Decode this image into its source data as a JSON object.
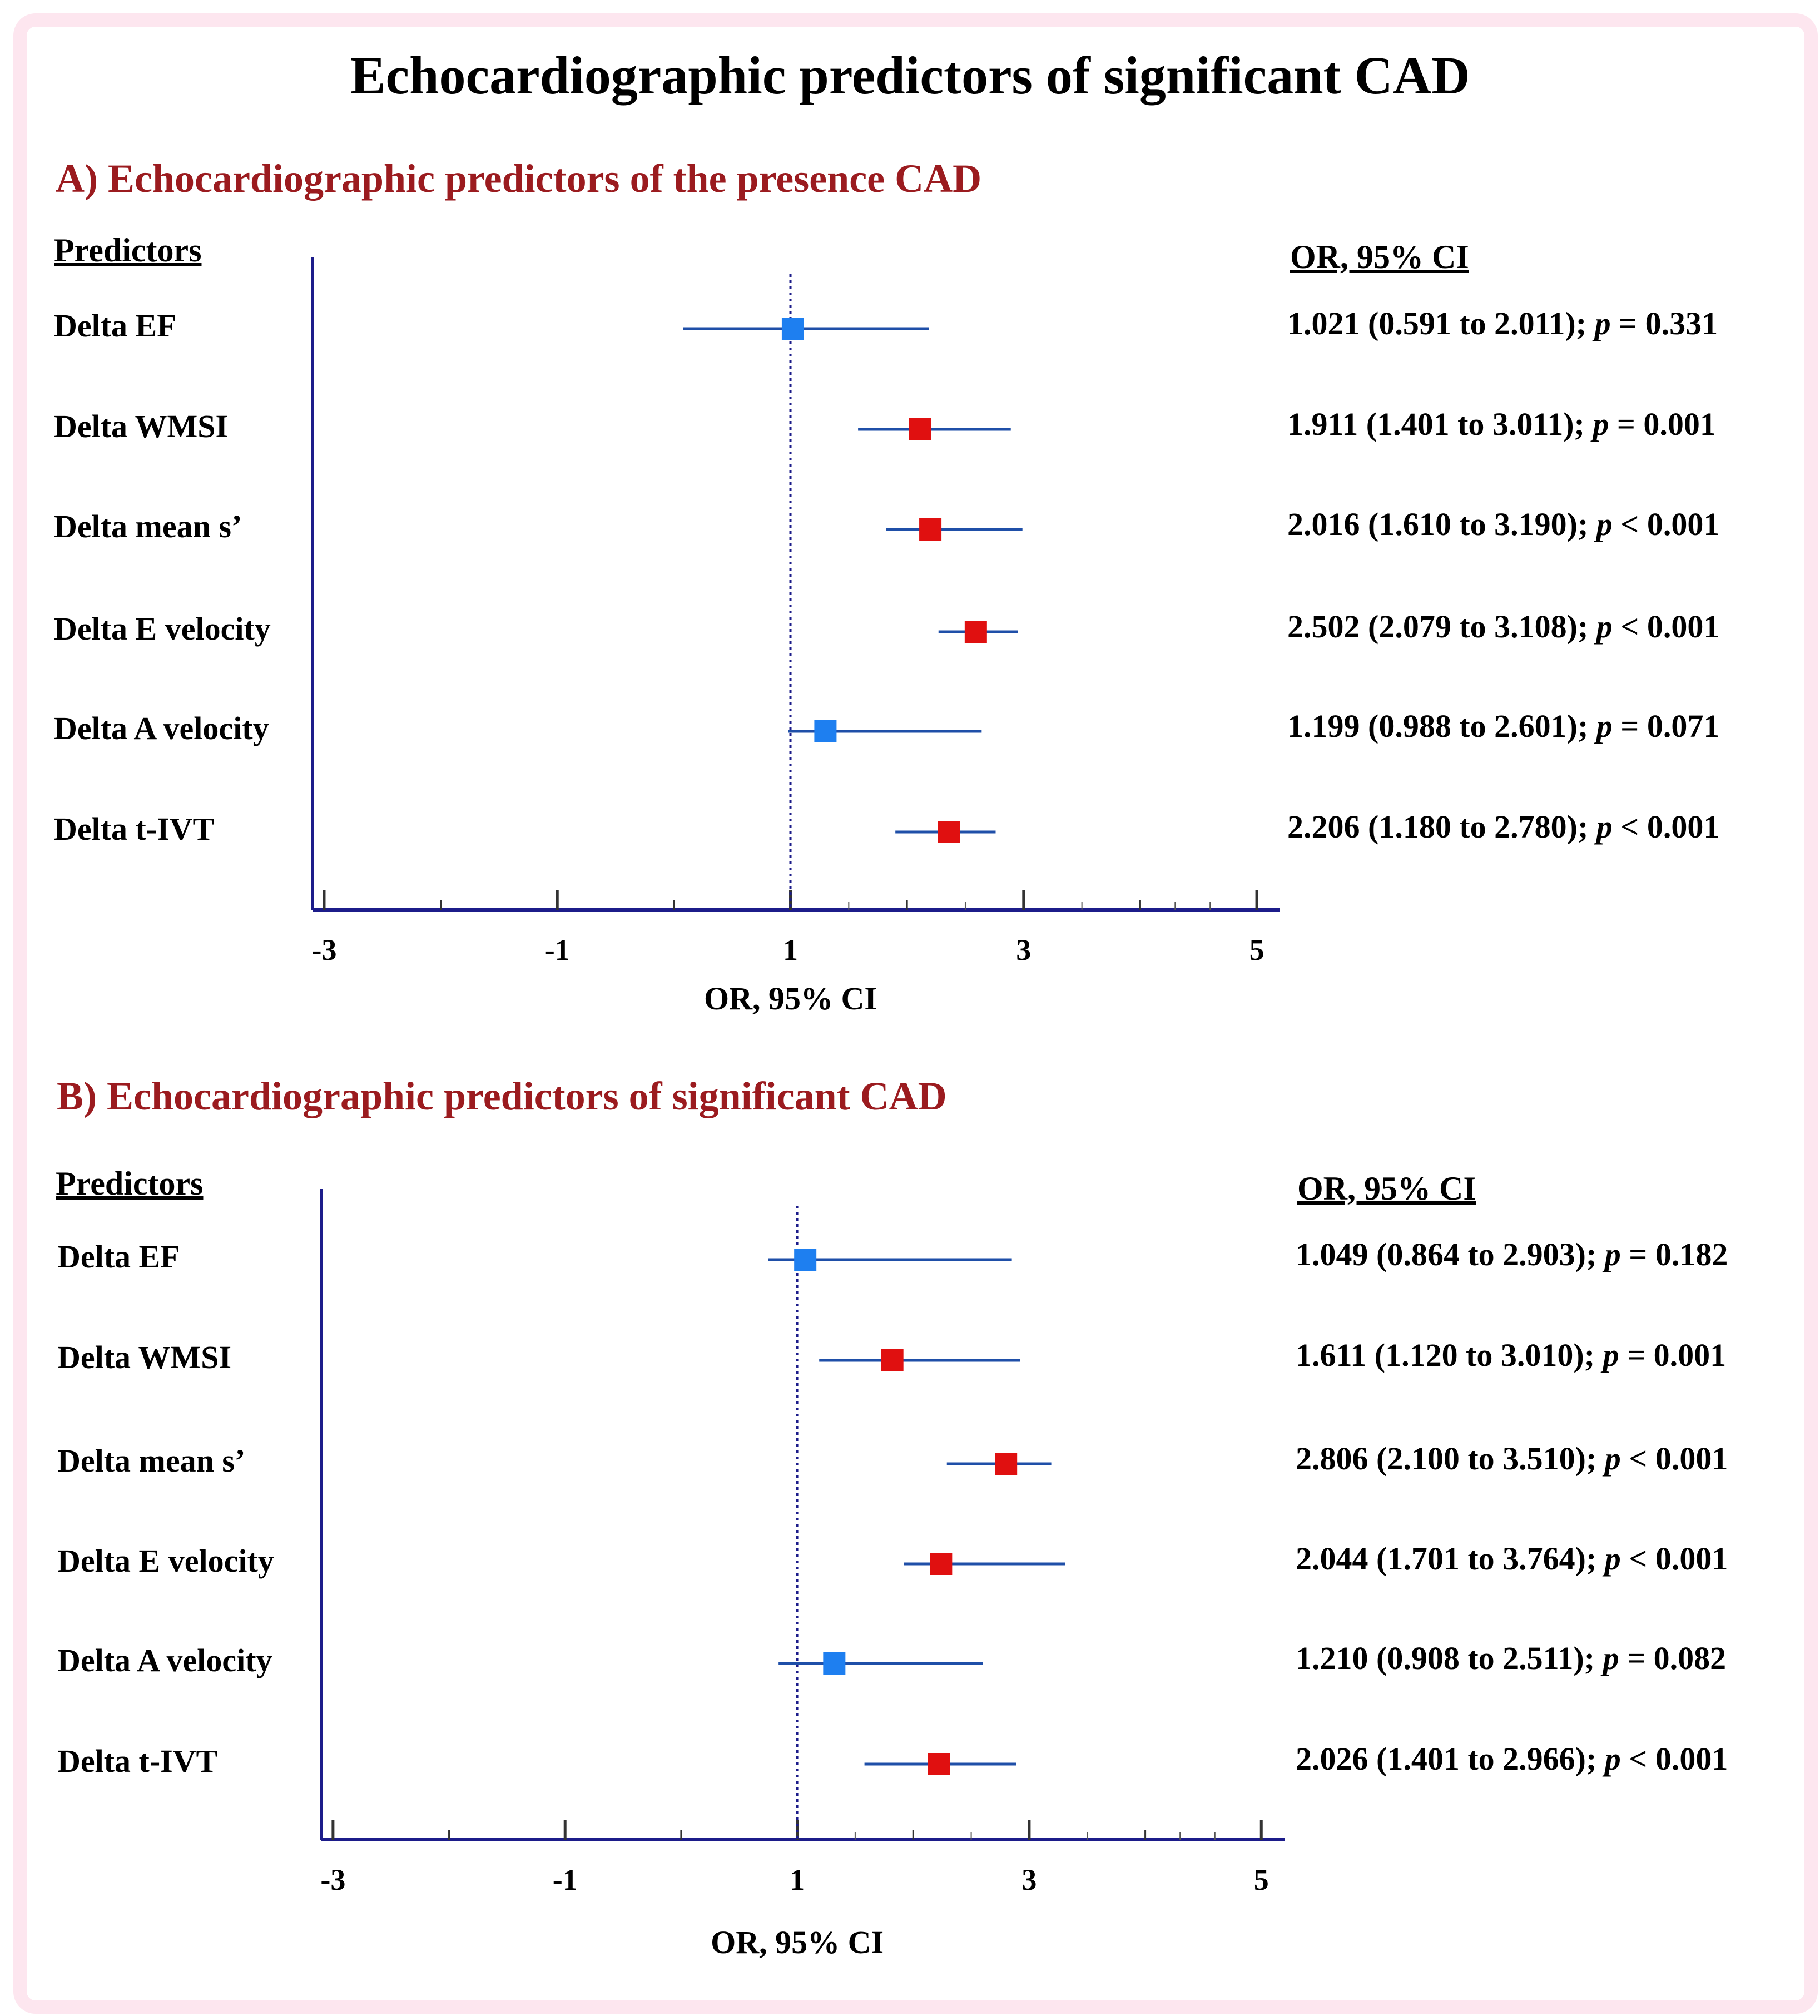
{
  "title": "Echocardiographic predictors of significant CAD",
  "colors": {
    "frame": "#fde6ef",
    "panel_title": "#9b1b1f",
    "axis": "#1c1c8a",
    "ci_line": "#1f4fa8",
    "significant": "#e01010",
    "nonsignificant": "#1e7ff0"
  },
  "chart_data": [
    {
      "type": "forest",
      "panel_title": "A) Echocardiographic predictors of the presence CAD",
      "predictors_header": "Predictors",
      "stats_header": "OR, 95% CI",
      "xlabel": "OR, 95% CI",
      "xlim": [
        -3.1,
        5.2
      ],
      "xticks": [
        "-3",
        "-1",
        "1",
        "3",
        "5"
      ],
      "reference_line": 1,
      "rows": [
        {
          "label": "Delta EF",
          "or": 1.021,
          "lo": 0.591,
          "hi": 2.011,
          "marker_x": 1.021,
          "ci_lo": 0.08,
          "ci_hi": 2.19,
          "p_op": "=",
          "p_val": "0.331",
          "or_text": "1.021",
          "ci_text": "(0.591 to 2.011)",
          "significant": false
        },
        {
          "label": "Delta WMSI",
          "or": 1.911,
          "lo": 1.401,
          "hi": 3.011,
          "marker_x": 2.11,
          "ci_lo": 1.58,
          "ci_hi": 2.89,
          "p_op": "=",
          "p_val": "0.001",
          "or_text": "1.911",
          "ci_text": "(1.401 to 3.011)",
          "significant": true
        },
        {
          "label": "Delta mean s’",
          "or": 2.016,
          "lo": 1.61,
          "hi": 3.19,
          "marker_x": 2.2,
          "ci_lo": 1.82,
          "ci_hi": 2.99,
          "p_op": "<",
          "p_val": "0.001",
          "or_text": "2.016",
          "ci_text": "(1.610 to 3.190)",
          "significant": true
        },
        {
          "label": "Delta E velocity",
          "or": 2.502,
          "lo": 2.079,
          "hi": 3.108,
          "marker_x": 2.59,
          "ci_lo": 2.27,
          "ci_hi": 2.95,
          "p_op": "<",
          "p_val": "0.001",
          "or_text": "2.502",
          "ci_text": "(2.079 to 3.108)",
          "significant": true
        },
        {
          "label": "Delta A velocity",
          "or": 1.199,
          "lo": 0.988,
          "hi": 2.601,
          "marker_x": 1.3,
          "ci_lo": 0.98,
          "ci_hi": 2.64,
          "p_op": "=",
          "p_val": "0.071",
          "or_text": "1.199",
          "ci_text": "(0.988 to 2.601)",
          "significant": false
        },
        {
          "label": "Delta t-IVT",
          "or": 2.206,
          "lo": 1.18,
          "hi": 2.78,
          "marker_x": 2.36,
          "ci_lo": 1.9,
          "ci_hi": 2.76,
          "p_op": "<",
          "p_val": "0.001",
          "or_text": "2.206",
          "ci_text": "(1.180 to 2.780)",
          "significant": true
        }
      ]
    },
    {
      "type": "forest",
      "panel_title": "B) Echocardiographic predictors of significant CAD",
      "predictors_header": "Predictors",
      "stats_header": "OR, 95% CI",
      "xlabel": "OR, 95% CI",
      "xlim": [
        -3.1,
        5.2
      ],
      "xticks": [
        "-3",
        "-1",
        "1",
        "3",
        "5"
      ],
      "reference_line": 1,
      "rows": [
        {
          "label": "Delta EF",
          "or": 1.049,
          "lo": 0.864,
          "hi": 2.903,
          "marker_x": 1.07,
          "ci_lo": 0.75,
          "ci_hi": 2.85,
          "p_op": "=",
          "p_val": "0.182",
          "or_text": "1.049",
          "ci_text": "(0.864 to 2.903)",
          "significant": false
        },
        {
          "label": "Delta WMSI",
          "or": 1.611,
          "lo": 1.12,
          "hi": 3.01,
          "marker_x": 1.82,
          "ci_lo": 1.19,
          "ci_hi": 2.92,
          "p_op": "=",
          "p_val": "0.001",
          "or_text": "1.611",
          "ci_text": "(1.120 to 3.010)",
          "significant": true
        },
        {
          "label": "Delta mean s’",
          "or": 2.806,
          "lo": 2.1,
          "hi": 3.51,
          "marker_x": 2.8,
          "ci_lo": 2.29,
          "ci_hi": 3.19,
          "p_op": "<",
          "p_val": "0.001",
          "or_text": "2.806",
          "ci_text": "(2.100 to 3.510)",
          "significant": true
        },
        {
          "label": "Delta E velocity",
          "or": 2.044,
          "lo": 1.701,
          "hi": 3.764,
          "marker_x": 2.24,
          "ci_lo": 1.92,
          "ci_hi": 3.31,
          "p_op": "<",
          "p_val": "0.001",
          "or_text": "2.044",
          "ci_text": "(1.701 to 3.764)",
          "significant": true
        },
        {
          "label": "Delta A velocity",
          "or": 1.21,
          "lo": 0.908,
          "hi": 2.511,
          "marker_x": 1.32,
          "ci_lo": 0.84,
          "ci_hi": 2.6,
          "p_op": "=",
          "p_val": "0.082",
          "or_text": "1.210",
          "ci_text": "(0.908 to 2.511)",
          "significant": false
        },
        {
          "label": "Delta t-IVT",
          "or": 2.026,
          "lo": 1.401,
          "hi": 2.966,
          "marker_x": 2.22,
          "ci_lo": 1.58,
          "ci_hi": 2.89,
          "p_op": "<",
          "p_val": "0.001",
          "or_text": "2.026",
          "ci_text": "(1.401 to 2.966)",
          "significant": true
        }
      ]
    }
  ]
}
